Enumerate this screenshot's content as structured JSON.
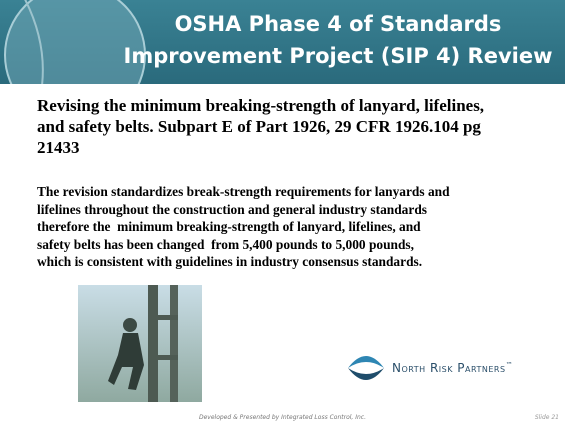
{
  "header": {
    "title": [
      "OSHA Phase 4 of Standards",
      "Improvement Project (SIP 4) Review"
    ]
  },
  "body": {
    "heading": [
      "Revising the minimum breaking-strength of lanyard, lifelines,",
      "and safety belts. Subpart E of Part 1926, 29 CFR 1926.104 pg",
      "21433"
    ],
    "paragraph": [
      "The revision standardizes break-strength requirements for lanyards and",
      "lifelines throughout the construction and general industry standards",
      "therefore the  minimum breaking-strength of lanyard, lifelines, and",
      "safety belts has been changed  from 5,400 pounds to 5,000 pounds,",
      "which is consistent with guidelines in industry consensus standards."
    ]
  },
  "logo": {
    "text": "North Risk Partners",
    "mark": "™"
  },
  "footer": {
    "credit": "Developed & Presented by Integrated Loss Control, Inc.",
    "slide": "Slide 21"
  }
}
